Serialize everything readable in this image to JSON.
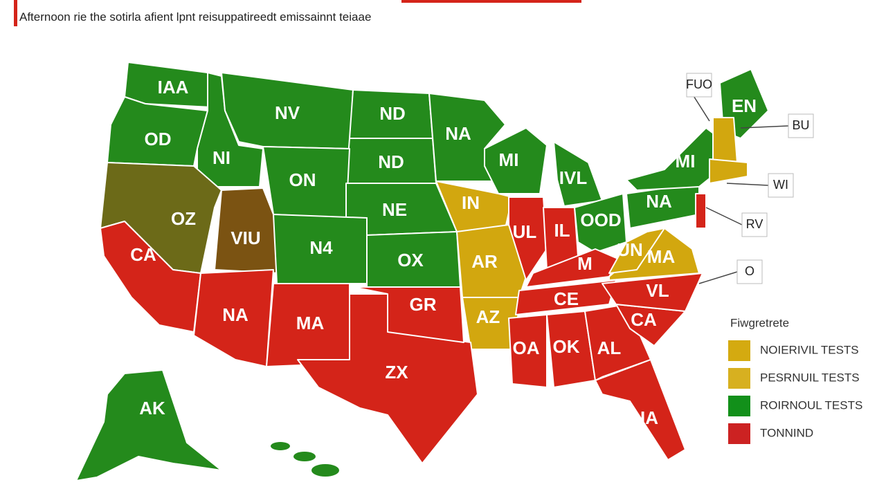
{
  "header": {
    "title": "Afternoon rie the sotirla afient lpnt reisuppatireedt emissainnt teiaae"
  },
  "states": [
    {
      "label": "IAA"
    },
    {
      "label": "OD"
    },
    {
      "label": "NI"
    },
    {
      "label": "NV"
    },
    {
      "label": "ND"
    },
    {
      "label": "ND"
    },
    {
      "label": "NA"
    },
    {
      "label": "MI"
    },
    {
      "label": "IVL"
    },
    {
      "label": "ON"
    },
    {
      "label": "NE"
    },
    {
      "label": "OZ"
    },
    {
      "label": "VIU"
    },
    {
      "label": "N4"
    },
    {
      "label": "OX"
    },
    {
      "label": "IN"
    },
    {
      "label": "AR"
    },
    {
      "label": "AZ"
    },
    {
      "label": "CA"
    },
    {
      "label": "NA"
    },
    {
      "label": "MA"
    },
    {
      "label": "ZX"
    },
    {
      "label": "GR"
    },
    {
      "label": "UL"
    },
    {
      "label": "IL"
    },
    {
      "label": "OOD"
    },
    {
      "label": "M"
    },
    {
      "label": "CE"
    },
    {
      "label": "OA"
    },
    {
      "label": "OK"
    },
    {
      "label": "AL"
    },
    {
      "label": "IA"
    },
    {
      "label": "CA"
    },
    {
      "label": "VL"
    },
    {
      "label": "MA"
    },
    {
      "label": "UN"
    },
    {
      "label": "NA"
    },
    {
      "label": "MI"
    },
    {
      "label": "EN"
    },
    {
      "label": "AK"
    }
  ],
  "callouts": [
    {
      "label": "FUO"
    },
    {
      "label": "BU"
    },
    {
      "label": "WI"
    },
    {
      "label": "RV"
    },
    {
      "label": "O"
    }
  ],
  "legend": {
    "title": "Fiwgretrete",
    "items": [
      {
        "label": "NOIERIVIL TESTS"
      },
      {
        "label": "PESRNUIL TESTS"
      },
      {
        "label": "ROIRNOUL TESTS"
      },
      {
        "label": "TONNIND"
      }
    ]
  }
}
